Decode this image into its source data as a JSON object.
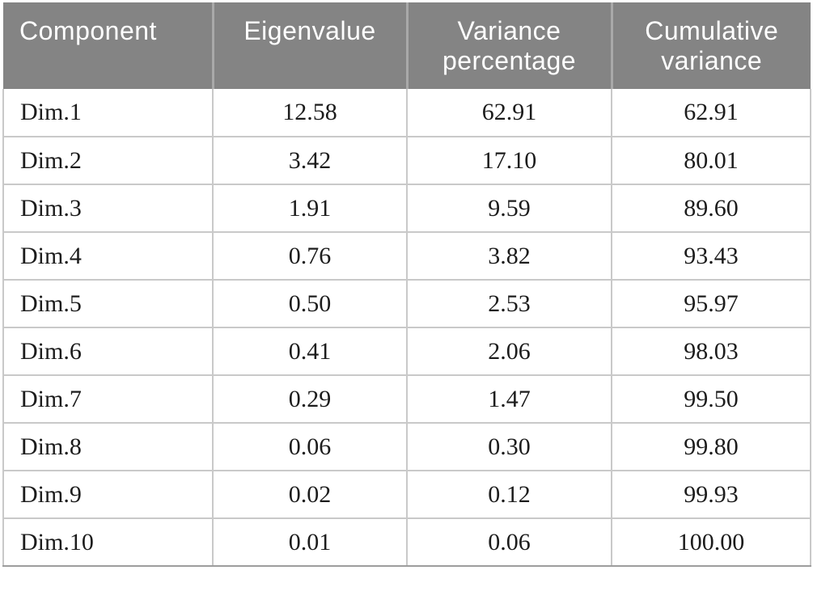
{
  "colors": {
    "header_bg": "#848484",
    "header_text": "#ffffff",
    "header_divider": "#a9a9a9",
    "row_divider": "#c9c9c9",
    "outer_border": "#9d9d9d",
    "body_text": "#1c1c1c",
    "background": "#ffffff"
  },
  "table": {
    "columns": [
      {
        "id": "component",
        "label": "Component"
      },
      {
        "id": "eigenvalue",
        "label": "Eigenvalue"
      },
      {
        "id": "variance_percentage",
        "label": "Variance\npercentage"
      },
      {
        "id": "cumulative_variance",
        "label": "Cumulative\nvariance"
      }
    ],
    "rows": [
      {
        "component": "Dim.1",
        "eigenvalue": "12.58",
        "variance_percentage": "62.91",
        "cumulative_variance": "62.91"
      },
      {
        "component": "Dim.2",
        "eigenvalue": "3.42",
        "variance_percentage": "17.10",
        "cumulative_variance": "80.01"
      },
      {
        "component": "Dim.3",
        "eigenvalue": "1.91",
        "variance_percentage": "9.59",
        "cumulative_variance": "89.60"
      },
      {
        "component": "Dim.4",
        "eigenvalue": "0.76",
        "variance_percentage": "3.82",
        "cumulative_variance": "93.43"
      },
      {
        "component": "Dim.5",
        "eigenvalue": "0.50",
        "variance_percentage": "2.53",
        "cumulative_variance": "95.97"
      },
      {
        "component": "Dim.6",
        "eigenvalue": "0.41",
        "variance_percentage": "2.06",
        "cumulative_variance": "98.03"
      },
      {
        "component": "Dim.7",
        "eigenvalue": "0.29",
        "variance_percentage": "1.47",
        "cumulative_variance": "99.50"
      },
      {
        "component": "Dim.8",
        "eigenvalue": "0.06",
        "variance_percentage": "0.30",
        "cumulative_variance": "99.80"
      },
      {
        "component": "Dim.9",
        "eigenvalue": "0.02",
        "variance_percentage": "0.12",
        "cumulative_variance": "99.93"
      },
      {
        "component": "Dim.10",
        "eigenvalue": "0.01",
        "variance_percentage": "0.06",
        "cumulative_variance": "100.00"
      }
    ]
  },
  "chart_data": {
    "type": "table",
    "title": "",
    "columns": [
      "Component",
      "Eigenvalue",
      "Variance percentage",
      "Cumulative variance"
    ],
    "rows": [
      [
        "Dim.1",
        12.58,
        62.91,
        62.91
      ],
      [
        "Dim.2",
        3.42,
        17.1,
        80.01
      ],
      [
        "Dim.3",
        1.91,
        9.59,
        89.6
      ],
      [
        "Dim.4",
        0.76,
        3.82,
        93.43
      ],
      [
        "Dim.5",
        0.5,
        2.53,
        95.97
      ],
      [
        "Dim.6",
        0.41,
        2.06,
        98.03
      ],
      [
        "Dim.7",
        0.29,
        1.47,
        99.5
      ],
      [
        "Dim.8",
        0.06,
        0.3,
        99.8
      ],
      [
        "Dim.9",
        0.02,
        0.12,
        99.93
      ],
      [
        "Dim.10",
        0.01,
        0.06,
        100.0
      ]
    ]
  }
}
